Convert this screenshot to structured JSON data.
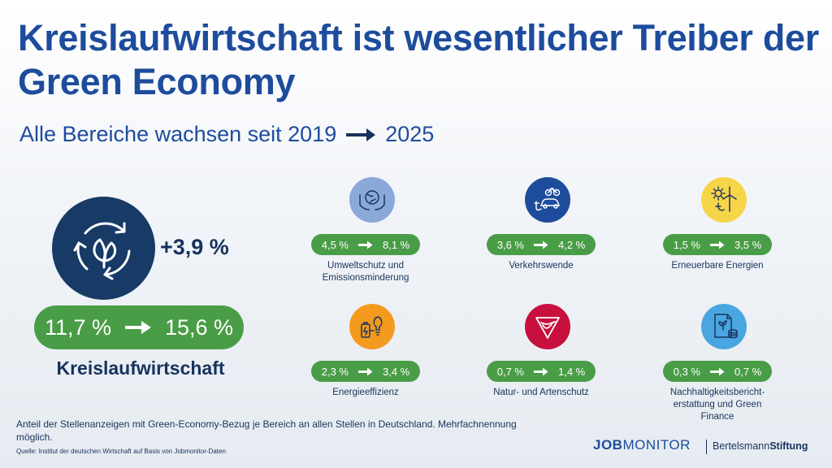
{
  "title": "Kreislaufwirtschaft ist wesentlicher Treiber der Green Economy",
  "subtitle": {
    "prefix": "Alle Bereiche wachsen seit 2019",
    "suffix": "2025"
  },
  "main": {
    "delta": "+3,9 %",
    "from": "11,7 %",
    "to": "15,6 %",
    "label": "Kreislaufwirtschaft",
    "icon": "circular-economy-icon"
  },
  "categories": [
    {
      "from": "4,5 %",
      "to": "8,1 %",
      "label": "Umweltschutz und Emissionsminderung",
      "icon": "globe-hands-icon",
      "color": "#8aa8d8"
    },
    {
      "from": "3,6 %",
      "to": "4,2 %",
      "label": "Verkehrswende",
      "icon": "bike-ecar-icon",
      "color": "#1d4c9c"
    },
    {
      "from": "1,5 %",
      "to": "3,5 %",
      "label": "Erneuerbare Energien",
      "icon": "sun-windturbine-icon",
      "color": "#f7d548"
    },
    {
      "from": "2,3 %",
      "to": "3,4 %",
      "label": "Energieeffizienz",
      "icon": "battery-bulb-icon",
      "color": "#f39a1f"
    },
    {
      "from": "0,7 %",
      "to": "1,4 %",
      "label": "Natur- und Artenschutz",
      "icon": "bird-icon",
      "color": "#c8103e"
    },
    {
      "from": "0,3 %",
      "to": "0,7 %",
      "label": "Nachhaltigkeitsbericht-erstattung und Green Finance",
      "icon": "report-coins-icon",
      "color": "#4aa6e0"
    }
  ],
  "footnote": "Anteil der Stellenanzeigen mit Green-Economy-Bezug je Bereich an allen Stellen in Deutschland. Mehrfachnennung möglich.",
  "source": "Quelle: Institut der deutschen Wirtschaft auf Basis von Jobmonitor-Daten",
  "logos": {
    "jobmonitor_bold": "JOB",
    "jobmonitor_rest": "MONITOR",
    "bertelsmann": "Bertelsmann",
    "stiftung": "Stiftung"
  },
  "colors": {
    "title": "#1d4c9c",
    "pill": "#4a9d47",
    "dark": "#173a67"
  }
}
